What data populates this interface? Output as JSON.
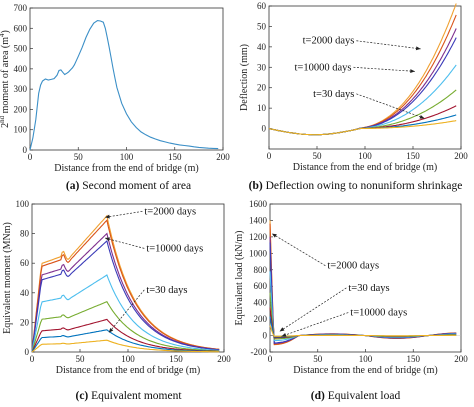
{
  "captions": {
    "a": {
      "letter": "(a)",
      "text": " Second moment of area"
    },
    "b": {
      "letter": "(b)",
      "text": " Deflection owing to nonuniform shrinkage"
    },
    "c": {
      "letter": "(c)",
      "text": " Equivalent moment"
    },
    "d": {
      "letter": "(d)",
      "text": " Equivalent load"
    }
  },
  "chart_data": [
    {
      "id": "a",
      "type": "line",
      "title": "",
      "xlabel": "Distance from the end of bridge (m)",
      "ylabel_parts": {
        "pre": "2",
        "sup": "nd",
        "mid": " moment of area (m",
        "sup2": "4",
        "post": ")"
      },
      "xlim": [
        0,
        200
      ],
      "ylim": [
        0,
        700
      ],
      "xticks": [
        0,
        50,
        100,
        150,
        200
      ],
      "yticks": [
        0,
        100,
        200,
        300,
        400,
        500,
        600,
        700
      ],
      "series": [
        {
          "color": "#3b8fc7",
          "x": [
            0,
            3,
            6,
            9,
            11,
            13,
            16,
            19,
            22,
            25,
            28,
            30,
            32,
            34,
            36,
            38,
            40,
            42,
            44,
            46,
            48,
            50,
            54,
            58,
            62,
            66,
            70,
            73,
            76,
            78,
            80,
            82,
            84,
            86,
            88,
            90,
            95,
            100,
            105,
            110,
            115,
            120,
            125,
            130,
            135,
            140,
            145,
            150,
            155,
            160,
            165,
            170,
            175,
            180,
            185,
            190,
            195
          ],
          "values": [
            0,
            60,
            150,
            280,
            320,
            340,
            350,
            345,
            348,
            352,
            368,
            392,
            395,
            383,
            372,
            378,
            385,
            395,
            405,
            420,
            440,
            462,
            505,
            555,
            595,
            625,
            638,
            636,
            630,
            600,
            556,
            508,
            455,
            403,
            356,
            308,
            230,
            178,
            139,
            111,
            89,
            75,
            63,
            54,
            46,
            40,
            34,
            29,
            25,
            22,
            19,
            16,
            13,
            11,
            9,
            8,
            7
          ]
        }
      ]
    },
    {
      "id": "b",
      "type": "line",
      "title": "",
      "xlabel": "Distance from the end of bridge (m)",
      "ylabel": "Deflection (mm)",
      "xlim": [
        0,
        200
      ],
      "ylim": [
        -10,
        60
      ],
      "xticks": [
        0,
        50,
        100,
        150,
        200
      ],
      "yticks": [
        0,
        10,
        20,
        30,
        40,
        50,
        60
      ],
      "annotations": [
        {
          "label": "t=2000 days",
          "text_at": [
            91,
            43
          ],
          "arrow_to": [
            158,
            39
          ]
        },
        {
          "label": "t=10000 days",
          "text_at": [
            88,
            30
          ],
          "arrow_to": [
            152,
            28
          ]
        },
        {
          "label": "t=30 days",
          "text_at": [
            91,
            17
          ],
          "arrow_to": [
            162,
            5
          ]
        }
      ],
      "series": [
        {
          "color": "#f0a030",
          "scale": 55.0
        },
        {
          "color": "#d95319",
          "scale": 50.0
        },
        {
          "color": "#7e2f8e",
          "scale": 44.0
        },
        {
          "color": "#3a3ab8",
          "scale": 40.0
        },
        {
          "color": "#4dbeee",
          "scale": 28.0
        },
        {
          "color": "#77ac30",
          "scale": 17.0
        },
        {
          "color": "#a2142f",
          "scale": 10.0
        },
        {
          "color": "#0072bd",
          "scale": 6.0
        },
        {
          "color": "#edb120",
          "scale": 3.5
        }
      ]
    },
    {
      "id": "c",
      "type": "line",
      "title": "",
      "xlabel": "Distance from the end of bridge (m)",
      "ylabel": "Equivalent moment (MNm)",
      "xlim": [
        0,
        200
      ],
      "ylim": [
        0,
        100
      ],
      "xticks": [
        0,
        50,
        100,
        150,
        200
      ],
      "yticks": [
        0,
        20,
        40,
        60,
        80,
        100
      ],
      "annotations": [
        {
          "label": "t=2000 days",
          "text_at": [
            115,
            95
          ],
          "arrow_to": [
            76,
            91
          ]
        },
        {
          "label": "t=10000 days",
          "text_at": [
            117,
            70
          ],
          "arrow_to": [
            76,
            77
          ]
        },
        {
          "label": "t=30 days",
          "text_at": [
            117,
            42
          ],
          "arrow_to": [
            80,
            13
          ]
        }
      ],
      "series": [
        {
          "color": "#f0a030",
          "scale": 92
        },
        {
          "color": "#d95319",
          "scale": 89
        },
        {
          "color": "#7e2f8e",
          "scale": 80
        },
        {
          "color": "#3a3ab8",
          "scale": 75
        },
        {
          "color": "#4dbeee",
          "scale": 52
        },
        {
          "color": "#77ac30",
          "scale": 34
        },
        {
          "color": "#a2142f",
          "scale": 22
        },
        {
          "color": "#0072bd",
          "scale": 15
        },
        {
          "color": "#edb120",
          "scale": 8
        }
      ]
    },
    {
      "id": "d",
      "type": "line",
      "title": "",
      "xlabel": "Distance from the end of bridge (m)",
      "ylabel": "Equivalent load (kN/m)",
      "xlim": [
        0,
        200
      ],
      "ylim": [
        -200,
        1600
      ],
      "xticks": [
        0,
        50,
        100,
        150,
        200
      ],
      "yticks": [
        -200,
        0,
        200,
        400,
        600,
        800,
        1000,
        1200,
        1400,
        1600
      ],
      "annotations": [
        {
          "label": "t=2000 days",
          "text_at": [
            58,
            850
          ],
          "arrow_to": [
            2,
            1240
          ]
        },
        {
          "label": "t=30 days",
          "text_at": [
            80,
            580
          ],
          "arrow_to": [
            10,
            50
          ]
        },
        {
          "label": "t=10000 days",
          "text_at": [
            82,
            280
          ],
          "arrow_to": [
            12,
            -10
          ]
        }
      ],
      "series": [
        {
          "color": "#f0a030",
          "scale": 1400
        },
        {
          "color": "#d95319",
          "scale": 1360
        },
        {
          "color": "#7e2f8e",
          "scale": 1200
        },
        {
          "color": "#3a3ab8",
          "scale": 1130
        },
        {
          "color": "#4dbeee",
          "scale": 780
        },
        {
          "color": "#77ac30",
          "scale": 520
        },
        {
          "color": "#a2142f",
          "scale": 340
        },
        {
          "color": "#0072bd",
          "scale": 230
        },
        {
          "color": "#edb120",
          "scale": 120
        }
      ]
    }
  ]
}
